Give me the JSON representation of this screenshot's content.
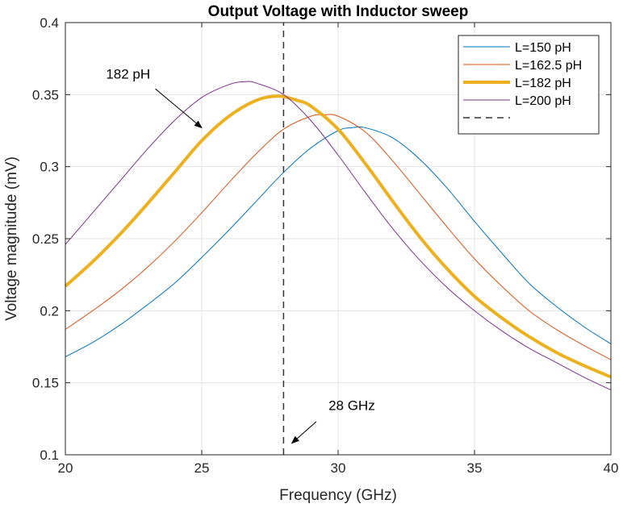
{
  "chart_data": {
    "type": "line",
    "title": "Output Voltage with Inductor sweep",
    "xlabel": "Frequency (GHz)",
    "ylabel": "Voltage magnitude (mV)",
    "xlim": [
      20,
      40
    ],
    "ylim": [
      0.1,
      0.4
    ],
    "xticks": [
      20,
      25,
      30,
      35,
      40
    ],
    "yticks": [
      0.1,
      0.15,
      0.2,
      0.25,
      0.3,
      0.35,
      0.4
    ],
    "xtick_labels": [
      "20",
      "25",
      "30",
      "35",
      "40"
    ],
    "ytick_labels": [
      "0.1",
      "0.15",
      "0.2",
      "0.25",
      "0.3",
      "0.35",
      "0.4"
    ],
    "grid": true,
    "legend_position": "top-right",
    "series": [
      {
        "name": "L=150 pH",
        "color": "#0072BD",
        "width": 1,
        "x": [
          20,
          21,
          22,
          23,
          24,
          25,
          26,
          27,
          28,
          29,
          30,
          30.5,
          31,
          32,
          33,
          34,
          35,
          36,
          37,
          38,
          39,
          40
        ],
        "y": [
          0.168,
          0.178,
          0.19,
          0.204,
          0.219,
          0.237,
          0.256,
          0.276,
          0.296,
          0.313,
          0.325,
          0.327,
          0.327,
          0.32,
          0.305,
          0.285,
          0.262,
          0.24,
          0.219,
          0.203,
          0.189,
          0.177
        ]
      },
      {
        "name": "L=162.5 pH",
        "color": "#D95319",
        "width": 1,
        "x": [
          20,
          21,
          22,
          23,
          24,
          25,
          26,
          27,
          28,
          29,
          29.5,
          30,
          31,
          32,
          33,
          34,
          35,
          36,
          37,
          38,
          39,
          40
        ],
        "y": [
          0.187,
          0.2,
          0.214,
          0.23,
          0.248,
          0.268,
          0.289,
          0.309,
          0.326,
          0.335,
          0.336,
          0.335,
          0.324,
          0.304,
          0.281,
          0.258,
          0.236,
          0.217,
          0.2,
          0.187,
          0.176,
          0.166
        ]
      },
      {
        "name": "L=182 pH",
        "color": "#EDB120",
        "width": 4,
        "x": [
          20,
          21,
          22,
          23,
          24,
          25,
          26,
          27,
          27.8,
          28.5,
          29,
          30,
          31,
          32,
          33,
          34,
          35,
          36,
          37,
          38,
          39,
          40
        ],
        "y": [
          0.217,
          0.234,
          0.253,
          0.274,
          0.296,
          0.318,
          0.335,
          0.346,
          0.349,
          0.346,
          0.342,
          0.326,
          0.302,
          0.276,
          0.251,
          0.229,
          0.21,
          0.195,
          0.182,
          0.171,
          0.162,
          0.154
        ]
      },
      {
        "name": "L=200 pH",
        "color": "#7E2F8E",
        "width": 1,
        "x": [
          20,
          21,
          22,
          23,
          24,
          25,
          26,
          26.6,
          27,
          28,
          29,
          30,
          31,
          32,
          33,
          34,
          35,
          36,
          37,
          38,
          39,
          40
        ],
        "y": [
          0.246,
          0.268,
          0.29,
          0.312,
          0.332,
          0.348,
          0.357,
          0.359,
          0.358,
          0.35,
          0.332,
          0.308,
          0.282,
          0.257,
          0.235,
          0.216,
          0.2,
          0.186,
          0.174,
          0.164,
          0.154,
          0.145
        ]
      },
      {
        "name": "",
        "color": "#333333",
        "width": 1.5,
        "dash": "8,6",
        "x": [
          28,
          28
        ],
        "y": [
          0.1,
          0.4
        ]
      }
    ],
    "annotations": [
      {
        "text": "182 pH",
        "text_at": [
          22.3,
          0.361
        ],
        "arrow_from": [
          23.3,
          0.354
        ],
        "arrow_to": [
          25.0,
          0.327
        ]
      },
      {
        "text": "28 GHz",
        "text_at": [
          30.5,
          0.131
        ],
        "arrow_from": [
          29.2,
          0.123
        ],
        "arrow_to": [
          28.3,
          0.108
        ]
      }
    ]
  }
}
